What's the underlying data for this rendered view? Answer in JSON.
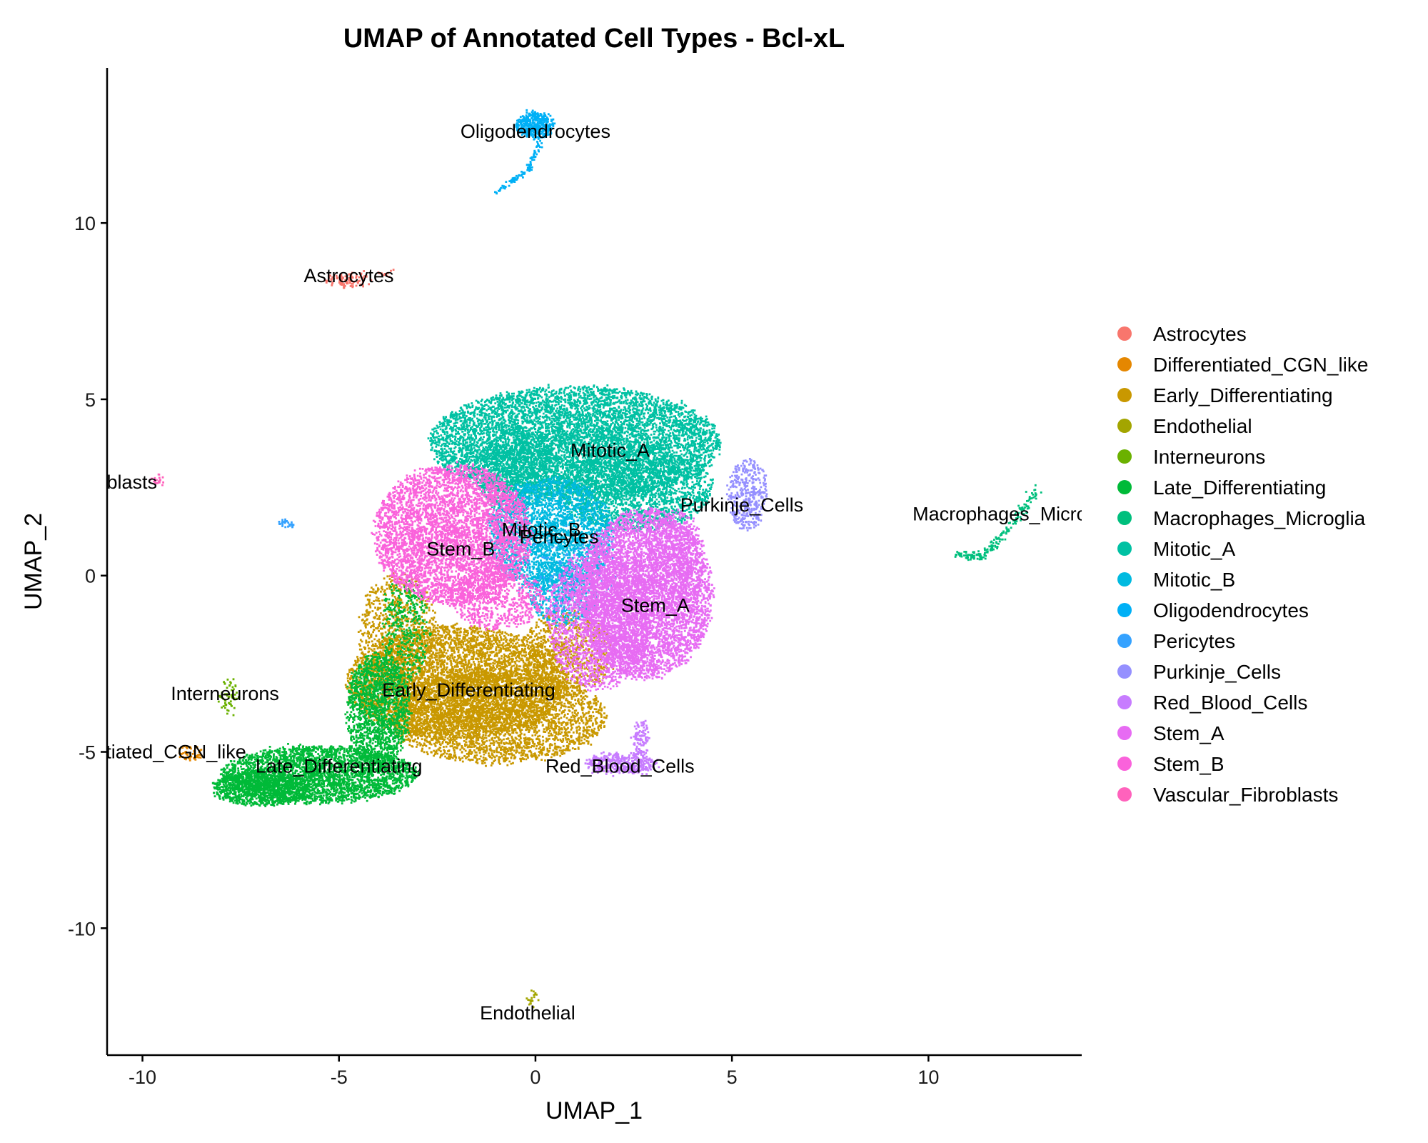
{
  "chart_data": {
    "type": "scatter",
    "title": "UMAP of Annotated Cell Types - Bcl-xL",
    "xlabel": "UMAP_1",
    "ylabel": "UMAP_2",
    "xlim": [
      -10.9,
      13.9
    ],
    "ylim": [
      -13.6,
      14.4
    ],
    "x_ticks": [
      -10,
      -5,
      0,
      5,
      10
    ],
    "y_ticks": [
      -10,
      -5,
      0,
      5,
      10
    ],
    "grid": false,
    "legend_position": "right",
    "series": [
      {
        "name": "Astrocytes",
        "color": "#F8766D",
        "clusters": [
          {
            "type": "blob",
            "cx": -4.7,
            "cy": 8.4,
            "rx": 0.6,
            "ry": 0.22,
            "n": 90
          },
          {
            "type": "blob",
            "cx": -3.8,
            "cy": 8.6,
            "rx": 0.2,
            "ry": 0.08,
            "n": 10
          }
        ]
      },
      {
        "name": "Differentiated_CGN_like",
        "color": "#E58700",
        "clusters": [
          {
            "type": "blob",
            "cx": -8.8,
            "cy": -5.0,
            "rx": 0.3,
            "ry": 0.2,
            "n": 50
          }
        ]
      },
      {
        "name": "Early_Differentiating",
        "color": "#C99800",
        "clusters": [
          {
            "type": "blob",
            "cx": -2.0,
            "cy": -3.0,
            "rx": 2.8,
            "ry": 1.6,
            "n": 5000
          },
          {
            "type": "blob",
            "cx": -1.0,
            "cy": -4.0,
            "rx": 2.8,
            "ry": 1.3,
            "n": 3000
          },
          {
            "type": "blob",
            "cx": -3.5,
            "cy": -1.5,
            "rx": 1.0,
            "ry": 1.6,
            "n": 800
          },
          {
            "type": "blob",
            "cx": 0.8,
            "cy": -2.2,
            "rx": 1.2,
            "ry": 1.2,
            "n": 800
          }
        ]
      },
      {
        "name": "Endothelial",
        "color": "#A3A500",
        "clusters": [
          {
            "type": "blob",
            "cx": -0.1,
            "cy": -12.0,
            "rx": 0.12,
            "ry": 0.25,
            "n": 20
          }
        ]
      },
      {
        "name": "Interneurons",
        "color": "#6BB100",
        "clusters": [
          {
            "type": "blob",
            "cx": -7.8,
            "cy": -3.4,
            "rx": 0.25,
            "ry": 0.5,
            "n": 60
          }
        ]
      },
      {
        "name": "Late_Differentiating",
        "color": "#00BA38",
        "clusters": [
          {
            "type": "blob",
            "cx": -5.5,
            "cy": -5.6,
            "rx": 2.5,
            "ry": 0.8,
            "n": 3000
          },
          {
            "type": "blob",
            "cx": -4.0,
            "cy": -3.8,
            "rx": 0.8,
            "ry": 1.6,
            "n": 1500
          },
          {
            "type": "blob",
            "cx": -7.0,
            "cy": -6.0,
            "rx": 1.2,
            "ry": 0.5,
            "n": 1000
          },
          {
            "type": "blob",
            "cx": -3.3,
            "cy": -1.5,
            "rx": 0.6,
            "ry": 1.5,
            "n": 400
          }
        ]
      },
      {
        "name": "Macrophages_Microglia",
        "color": "#00BF7D",
        "clusters": [
          {
            "type": "curve",
            "points": [
              [
                10.7,
                0.6
              ],
              [
                11.4,
                0.55
              ],
              [
                12.0,
                1.3
              ],
              [
                12.8,
                2.5
              ]
            ],
            "width": 0.12,
            "n": 200
          }
        ]
      },
      {
        "name": "Mitotic_A",
        "color": "#00C1A3",
        "clusters": [
          {
            "type": "blob",
            "cx": 1.0,
            "cy": 3.8,
            "rx": 3.7,
            "ry": 1.6,
            "n": 7000
          },
          {
            "type": "blob",
            "cx": 2.5,
            "cy": 2.5,
            "rx": 2.0,
            "ry": 1.2,
            "n": 2000
          },
          {
            "type": "blob",
            "cx": -0.5,
            "cy": 3.0,
            "rx": 1.0,
            "ry": 1.2,
            "n": 800
          }
        ]
      },
      {
        "name": "Mitotic_B",
        "color": "#00BAE0",
        "clusters": [
          {
            "type": "blob",
            "cx": 0.4,
            "cy": 1.2,
            "rx": 1.6,
            "ry": 1.6,
            "n": 2500
          },
          {
            "type": "blob",
            "cx": 0.7,
            "cy": -0.5,
            "rx": 0.9,
            "ry": 0.9,
            "n": 500
          }
        ]
      },
      {
        "name": "Oligodendrocytes",
        "color": "#00B0F6",
        "clusters": [
          {
            "type": "blob",
            "cx": 0.0,
            "cy": 12.8,
            "rx": 0.5,
            "ry": 0.35,
            "n": 400
          },
          {
            "type": "curve",
            "points": [
              [
                0.1,
                12.3
              ],
              [
                -0.2,
                11.5
              ],
              [
                -1.0,
                10.9
              ]
            ],
            "width": 0.08,
            "n": 100
          }
        ]
      },
      {
        "name": "Pericytes",
        "color": "#35A2FF",
        "clusters": [
          {
            "type": "blob",
            "cx": -6.3,
            "cy": 1.5,
            "rx": 0.2,
            "ry": 0.08,
            "n": 30
          },
          {
            "type": "blob",
            "cx": 0.8,
            "cy": 0.2,
            "rx": 1.5,
            "ry": 1.2,
            "n": 150
          }
        ]
      },
      {
        "name": "Purkinje_Cells",
        "color": "#9590FF",
        "clusters": [
          {
            "type": "blob",
            "cx": 5.4,
            "cy": 2.3,
            "rx": 0.5,
            "ry": 1.0,
            "n": 400
          }
        ]
      },
      {
        "name": "Red_Blood_Cells",
        "color": "#C77CFF",
        "clusters": [
          {
            "type": "blob",
            "cx": 2.2,
            "cy": -5.3,
            "rx": 0.9,
            "ry": 0.3,
            "n": 400
          },
          {
            "type": "blob",
            "cx": 2.7,
            "cy": -4.6,
            "rx": 0.2,
            "ry": 0.5,
            "n": 100
          }
        ]
      },
      {
        "name": "Stem_A",
        "color": "#E76BF3",
        "clusters": [
          {
            "type": "blob",
            "cx": 2.8,
            "cy": -0.5,
            "rx": 1.7,
            "ry": 2.4,
            "n": 5000
          },
          {
            "type": "blob",
            "cx": 1.6,
            "cy": -1.2,
            "rx": 1.3,
            "ry": 2.0,
            "n": 2000
          },
          {
            "type": "blob",
            "cx": 3.6,
            "cy": 0.5,
            "rx": 0.7,
            "ry": 1.4,
            "n": 600
          }
        ]
      },
      {
        "name": "Stem_B",
        "color": "#FA62DB",
        "clusters": [
          {
            "type": "blob",
            "cx": -2.1,
            "cy": 1.2,
            "rx": 2.0,
            "ry": 2.0,
            "n": 4500
          },
          {
            "type": "blob",
            "cx": -1.0,
            "cy": -0.6,
            "rx": 1.2,
            "ry": 0.9,
            "n": 700
          }
        ]
      },
      {
        "name": "Vascular_Fibroblasts",
        "color": "#FF62BC",
        "clusters": [
          {
            "type": "blob",
            "cx": -9.6,
            "cy": 2.75,
            "rx": 0.25,
            "ry": 0.15,
            "n": 20
          }
        ]
      }
    ],
    "annotations": [
      {
        "text": "Oligodendrocytes",
        "x": 0.0,
        "y": 12.6
      },
      {
        "text": "Astrocytes",
        "x": -4.75,
        "y": 8.5
      },
      {
        "text": "Mitotic_A",
        "x": 1.9,
        "y": 3.55
      },
      {
        "text": "Vascular_Fibroblasts",
        "x": -11.9,
        "y": 2.65
      },
      {
        "text": "Purkinje_Cells",
        "x": 5.25,
        "y": 2.0
      },
      {
        "text": "Macrophages_Microglia",
        "x": 12.2,
        "y": 1.75
      },
      {
        "text": "Mitotic_B",
        "x": 0.15,
        "y": 1.3
      },
      {
        "text": "Pericytes",
        "x": 0.6,
        "y": 1.1
      },
      {
        "text": "Stem_B",
        "x": -1.9,
        "y": 0.75
      },
      {
        "text": "Stem_A",
        "x": 3.05,
        "y": -0.85
      },
      {
        "text": "Interneurons",
        "x": -7.9,
        "y": -3.35
      },
      {
        "text": "Early_Differentiating",
        "x": -1.7,
        "y": -3.25
      },
      {
        "text": "Differentiated_CGN_like",
        "x": -10.0,
        "y": -5.0
      },
      {
        "text": "Late_Differentiating",
        "x": -5.0,
        "y": -5.4
      },
      {
        "text": "Red_Blood_Cells",
        "x": 2.15,
        "y": -5.4
      },
      {
        "text": "Endothelial",
        "x": -0.2,
        "y": -12.4
      }
    ]
  }
}
